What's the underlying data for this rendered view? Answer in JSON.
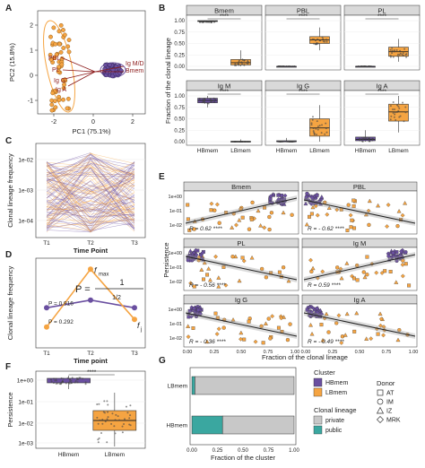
{
  "panel_labels": [
    "A",
    "B",
    "C",
    "D",
    "E",
    "F",
    "G"
  ],
  "colors": {
    "hbmem": "#6a4fa0",
    "lbmem": "#f5a442",
    "private": "#c8c8c8",
    "public": "#3aa7a0",
    "strip": "#d9d9d9",
    "arrow": "#8b1a1a"
  },
  "chart_data": [
    {
      "id": "A",
      "type": "scatter",
      "xlabel": "PC1 (75.1%)",
      "ylabel": "PC2 (15.8%)",
      "x_ticks": [
        "-2",
        "0",
        "2"
      ],
      "y_ticks": [
        "-1",
        "0",
        "1",
        "2"
      ],
      "arrow_labels": [
        "PBL",
        "PL",
        "Ig G",
        "Ig A",
        "Ig M/D",
        "Bmem"
      ]
    },
    {
      "id": "B",
      "type": "box",
      "ylabel": "Fraction of the clonal lineage",
      "categories": [
        "HBmem",
        "LBmem"
      ],
      "facets": [
        {
          "name": "Bmem",
          "hb": [
            0.97,
            0.98,
            0.99,
            1.0,
            1.0
          ],
          "lb": [
            0.0,
            0.03,
            0.08,
            0.15,
            0.35
          ],
          "sig": "****"
        },
        {
          "name": "PBL",
          "hb": [
            0.0,
            0.0,
            0.0,
            0.0,
            0.01
          ],
          "lb": [
            0.35,
            0.5,
            0.58,
            0.65,
            0.85
          ],
          "sig": "****"
        },
        {
          "name": "PL",
          "hb": [
            0.0,
            0.0,
            0.0,
            0.0,
            0.01
          ],
          "lb": [
            0.1,
            0.22,
            0.32,
            0.42,
            0.6
          ],
          "sig": "****"
        },
        {
          "name": "Ig M",
          "hb": [
            0.75,
            0.85,
            0.9,
            0.95,
            1.0
          ],
          "lb": [
            0.0,
            0.0,
            0.0,
            0.01,
            0.05
          ],
          "sig": "****"
        },
        {
          "name": "Ig G",
          "hb": [
            0.0,
            0.0,
            0.0,
            0.02,
            0.08
          ],
          "lb": [
            0.0,
            0.12,
            0.3,
            0.5,
            0.8
          ],
          "sig": "****"
        },
        {
          "name": "Ig A",
          "hb": [
            0.0,
            0.02,
            0.05,
            0.1,
            0.25
          ],
          "lb": [
            0.2,
            0.45,
            0.65,
            0.82,
            1.0
          ],
          "sig": "****"
        }
      ],
      "y_ticks": [
        "0.00",
        "0.25",
        "0.50",
        "0.75",
        "1.00"
      ]
    },
    {
      "id": "C",
      "type": "line",
      "xlabel": "Time Point",
      "ylabel": "Clonal lineage frequency",
      "categories": [
        "T1",
        "T2",
        "T3"
      ],
      "y_ticks": [
        "1e-02",
        "1e-03",
        "1e-04"
      ]
    },
    {
      "id": "D",
      "type": "line",
      "xlabel": "Time point",
      "ylabel": "Clonal lineage frequency",
      "categories": [
        "T1",
        "T2",
        "T3"
      ],
      "series": [
        {
          "name": "HBmem",
          "values": [
            0.45,
            0.55,
            0.45
          ]
        },
        {
          "name": "LBmem",
          "values": [
            0.2,
            0.95,
            0.3
          ]
        }
      ],
      "annotations": {
        "p_hb": "P = 0.916",
        "p_lb": "P = 0.292",
        "fmax": "f",
        "fmax_sub": "max",
        "fj": "f",
        "fj_sub": "j",
        "formula_p": "P =",
        "formula_one": "1",
        "formula_half": "1/2"
      }
    },
    {
      "id": "E",
      "type": "scatter",
      "xlabel": "Fraction of the clonal lineage",
      "ylabel": "Persistence",
      "x_ticks": [
        "0.00",
        "0.25",
        "0.50",
        "0.75",
        "1.00"
      ],
      "y_ticks": [
        "1e+00",
        "1e-01",
        "1e-02"
      ],
      "facets": [
        {
          "name": "Bmem",
          "r": "R = 0.62 ****",
          "slope": 1
        },
        {
          "name": "PBL",
          "r": "R = - 0.62 ****",
          "slope": -1
        },
        {
          "name": "PL",
          "r": "R = - 0.56 ****",
          "slope": -1
        },
        {
          "name": "Ig M",
          "r": "R = 0.59 ****",
          "slope": 1
        },
        {
          "name": "Ig G",
          "r": "R = - 0.36 ****",
          "slope": -1
        },
        {
          "name": "Ig A",
          "r": "R = - 0.49 ****",
          "slope": -1
        }
      ]
    },
    {
      "id": "F",
      "type": "box",
      "ylabel": "Persistence",
      "categories": [
        "HBmem",
        "LBmem"
      ],
      "y_ticks": [
        "1e+00",
        "1e-01",
        "1e-02",
        "1e-03"
      ],
      "sig": "****"
    },
    {
      "id": "G",
      "type": "bar",
      "xlabel": "Fraction of the cluster",
      "categories": [
        "LBmem",
        "HBmem"
      ],
      "series": [
        {
          "name": "public",
          "values": [
            0.03,
            0.3
          ]
        },
        {
          "name": "private",
          "values": [
            0.97,
            0.7
          ]
        }
      ],
      "x_ticks": [
        "0.00",
        "0.25",
        "0.50",
        "0.75",
        "1.00"
      ]
    }
  ],
  "legend": {
    "cluster_title": "Cluster",
    "cluster_items": [
      "HBmem",
      "LBmem"
    ],
    "lineage_title": "Clonal lineage",
    "lineage_items": [
      "private",
      "public"
    ],
    "donor_title": "Donor",
    "donor_items": [
      "AT",
      "IM",
      "IZ",
      "MRK"
    ]
  }
}
